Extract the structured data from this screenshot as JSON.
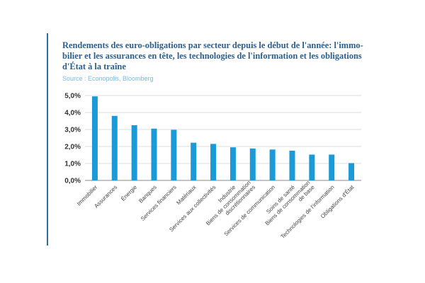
{
  "title_lines": [
    "Rendements des euro-obligations par secteur depuis le début de l'année: l'immo-",
    "bilier et les assurances en tête, les technologies de l'information et les obligations",
    "d'État à la traîne"
  ],
  "source": "Source : Econopolis, Bloomberg",
  "colors": {
    "bar": "#1a9ad6",
    "title": "#2b5f8f",
    "source": "#7ab8e0",
    "accent": "#2c6e9e"
  },
  "chart_data": {
    "type": "bar",
    "title": "Rendements des euro-obligations par secteur depuis le début de l'année: l'immobilier et les assurances en tête, les technologies de l'information et les obligations d'État à la traîne",
    "xlabel": "",
    "ylabel": "",
    "ylim": [
      0,
      5
    ],
    "grid": "horizontal",
    "y_ticks": [
      {
        "value": 0,
        "label": "0,0%"
      },
      {
        "value": 1,
        "label": "1,0%"
      },
      {
        "value": 2,
        "label": "2,0%"
      },
      {
        "value": 3,
        "label": "3,0%"
      },
      {
        "value": 4,
        "label": "4,0%"
      },
      {
        "value": 5,
        "label": "5,0%"
      }
    ],
    "categories": [
      [
        "Immobilier"
      ],
      [
        "Assurances"
      ],
      [
        "Énergie"
      ],
      [
        "Banques"
      ],
      [
        "Services financiers"
      ],
      [
        "Matériaux"
      ],
      [
        "Services aux collectivités"
      ],
      [
        "Industrie"
      ],
      [
        "Biens de consommation",
        "discrétionnaires"
      ],
      [
        "Services de communication"
      ],
      [
        "Soins de santé"
      ],
      [
        "Biens de consommation",
        "de base"
      ],
      [
        "Technologies de l'information"
      ],
      [
        "Obligations d'État"
      ]
    ],
    "values": [
      4.95,
      3.8,
      3.25,
      3.05,
      2.98,
      2.22,
      2.15,
      1.95,
      1.88,
      1.82,
      1.75,
      1.52,
      1.52,
      1.02
    ]
  }
}
